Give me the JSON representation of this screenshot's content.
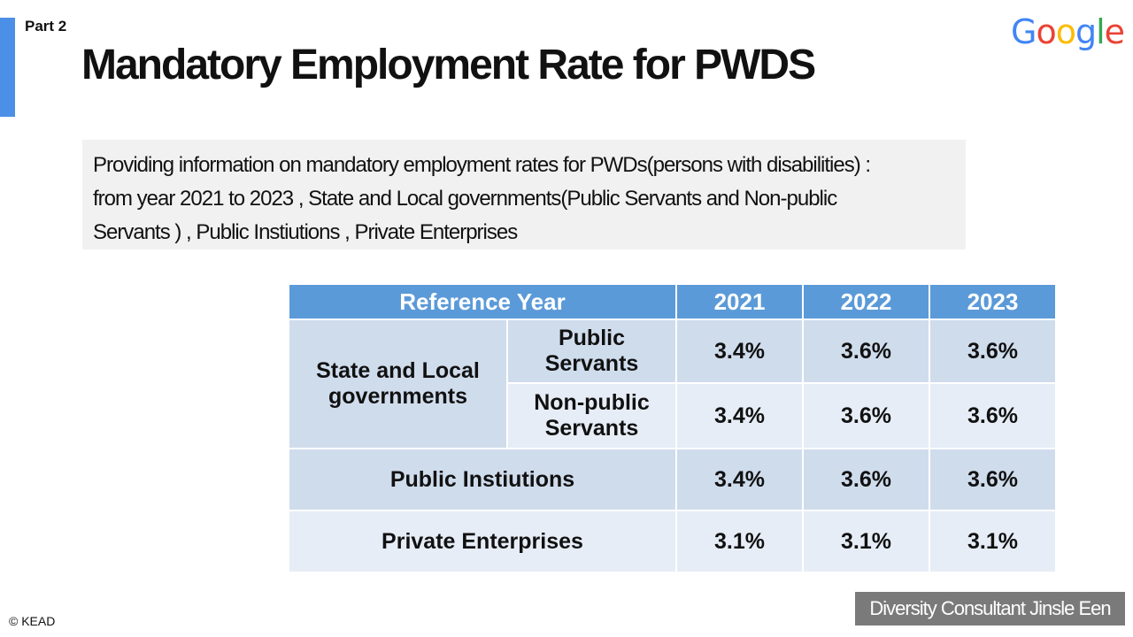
{
  "header": {
    "part_label": "Part 2",
    "title": "Mandatory Employment Rate for PWDS",
    "logo_text": "Google",
    "logo_letters": [
      {
        "char": "G",
        "color": "#4285F4"
      },
      {
        "char": "o",
        "color": "#EA4335"
      },
      {
        "char": "o",
        "color": "#FBBC05"
      },
      {
        "char": "g",
        "color": "#4285F4"
      },
      {
        "char": "l",
        "color": "#34A853"
      },
      {
        "char": "e",
        "color": "#EA4335"
      }
    ]
  },
  "intro": {
    "line1": "Providing information on mandatory employment rates for PWDs(persons with disabilities) :",
    "line2": "from year 2021 to 2023 , State and Local governments(Public Servants and Non-public",
    "line3": "Servants ) , Public Instiutions , Private Enterprises"
  },
  "table": {
    "header": {
      "label": "Reference Year",
      "years": [
        "2021",
        "2022",
        "2023"
      ]
    },
    "group_label": "State and Local governments",
    "rows": [
      {
        "label": "Public Servants",
        "values": [
          "3.4%",
          "3.6%",
          "3.6%"
        ]
      },
      {
        "label": "Non-public Servants",
        "values": [
          "3.4%",
          "3.6%",
          "3.6%"
        ]
      },
      {
        "label": "Public Instiutions",
        "values": [
          "3.4%",
          "3.6%",
          "3.6%"
        ]
      },
      {
        "label": "Private Enterprises",
        "values": [
          "3.1%",
          "3.1%",
          "3.1%"
        ]
      }
    ]
  },
  "footer": {
    "copyright": "© KEAD",
    "consultant": "Diversity Consultant Jinsle Een"
  },
  "colors": {
    "accent": "#4b8fe6",
    "table_header": "#5b9ad8",
    "row_dark": "#cfdcec",
    "row_light": "#e6edf6",
    "intro_bg": "#f1f1f1",
    "consultant_bg": "#7a7a7a"
  }
}
